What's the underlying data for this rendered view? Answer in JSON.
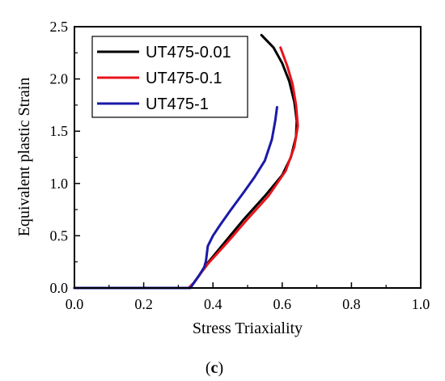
{
  "chart_data": {
    "type": "line",
    "title": "",
    "xlabel": "Stress Triaxiality",
    "ylabel": "Equivalent plastic Strain",
    "xlim": [
      0.0,
      1.0
    ],
    "ylim": [
      0.0,
      2.5
    ],
    "xticks": [
      "0.0",
      "0.2",
      "0.4",
      "0.6",
      "0.8",
      "1.0"
    ],
    "yticks": [
      "0.0",
      "0.5",
      "1.0",
      "1.5",
      "2.0",
      "2.5"
    ],
    "grid": false,
    "legend_position": "top-left",
    "series": [
      {
        "name": "UT475-0.01",
        "color": "#000000",
        "points": [
          [
            0.0,
            0.0
          ],
          [
            0.33,
            0.0
          ],
          [
            0.345,
            0.05
          ],
          [
            0.36,
            0.12
          ],
          [
            0.38,
            0.22
          ],
          [
            0.43,
            0.42
          ],
          [
            0.49,
            0.66
          ],
          [
            0.55,
            0.88
          ],
          [
            0.6,
            1.08
          ],
          [
            0.625,
            1.25
          ],
          [
            0.64,
            1.45
          ],
          [
            0.642,
            1.6
          ],
          [
            0.635,
            1.78
          ],
          [
            0.62,
            1.98
          ],
          [
            0.6,
            2.15
          ],
          [
            0.575,
            2.3
          ],
          [
            0.54,
            2.42
          ]
        ]
      },
      {
        "name": "UT475-0.1",
        "color": "#e8141b",
        "points": [
          [
            0.0,
            0.0
          ],
          [
            0.33,
            0.0
          ],
          [
            0.345,
            0.05
          ],
          [
            0.36,
            0.12
          ],
          [
            0.385,
            0.23
          ],
          [
            0.44,
            0.43
          ],
          [
            0.5,
            0.66
          ],
          [
            0.56,
            0.88
          ],
          [
            0.61,
            1.12
          ],
          [
            0.635,
            1.35
          ],
          [
            0.645,
            1.55
          ],
          [
            0.64,
            1.75
          ],
          [
            0.63,
            1.95
          ],
          [
            0.615,
            2.12
          ],
          [
            0.595,
            2.3
          ]
        ]
      },
      {
        "name": "UT475-1",
        "color": "#1a1aa8",
        "points": [
          [
            0.0,
            0.0
          ],
          [
            0.335,
            0.0
          ],
          [
            0.345,
            0.05
          ],
          [
            0.36,
            0.12
          ],
          [
            0.375,
            0.2
          ],
          [
            0.38,
            0.26
          ],
          [
            0.385,
            0.4
          ],
          [
            0.4,
            0.5
          ],
          [
            0.42,
            0.6
          ],
          [
            0.45,
            0.74
          ],
          [
            0.49,
            0.92
          ],
          [
            0.52,
            1.06
          ],
          [
            0.55,
            1.22
          ],
          [
            0.57,
            1.42
          ],
          [
            0.58,
            1.6
          ],
          [
            0.585,
            1.73
          ]
        ]
      }
    ]
  },
  "panel_label": {
    "open": "(",
    "letter": "c",
    "close": ")"
  }
}
